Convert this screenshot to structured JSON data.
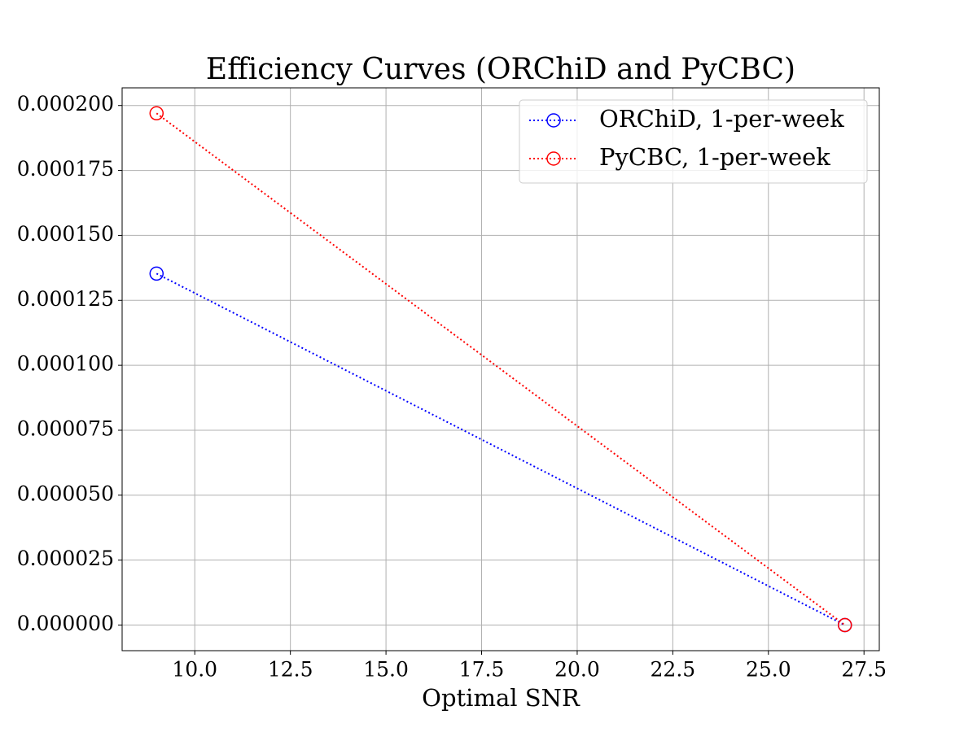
{
  "chart_data": {
    "type": "line",
    "title": "Efficiency Curves (ORChiD and PyCBC)",
    "x_label": "Optimal SNR",
    "x": [
      9,
      27
    ],
    "series": [
      {
        "name": "ORChiD, 1-per-week",
        "color": "#0000ff",
        "values": [
          0.0001353,
          0
        ]
      },
      {
        "name": "PyCBC, 1-per-week",
        "color": "#ff0000",
        "values": [
          0.000197,
          0
        ]
      }
    ],
    "xlim": [
      8.1,
      27.9
    ],
    "xticks": [
      {
        "value": 10,
        "label": "10.0"
      },
      12.5,
      {
        "value": 15,
        "label": "15.0"
      },
      17.5,
      {
        "value": 20,
        "label": "20.0"
      },
      22.5,
      {
        "value": 25,
        "label": "25.0"
      },
      27.5
    ],
    "ylim": [
      -9.85e-06,
      0.0002068
    ],
    "yticks": [
      {
        "value": 0,
        "label": "0.000000"
      },
      {
        "value": 2.5e-05,
        "label": "0.000025"
      },
      {
        "value": 5e-05,
        "label": "0.000050"
      },
      {
        "value": 7.5e-05,
        "label": "0.000075"
      },
      {
        "value": 0.0001,
        "label": "0.000100"
      },
      {
        "value": 0.000125,
        "label": "0.000125"
      },
      {
        "value": 0.00015,
        "label": "0.000150"
      },
      {
        "value": 0.000175,
        "label": "0.000175"
      },
      {
        "value": 0.0002,
        "label": "0.000200"
      }
    ],
    "grid": true,
    "legend": "upper right"
  }
}
